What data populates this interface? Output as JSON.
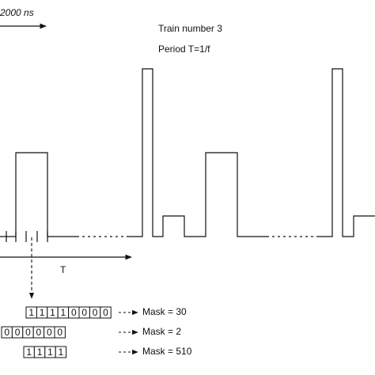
{
  "header": {
    "scale": "2000 ns",
    "train": "Train number 3",
    "period": "Period T=1/f"
  },
  "axis_label": "T",
  "masks": [
    {
      "bits": [
        "1",
        "1",
        "1",
        "1",
        "0",
        "0",
        "0",
        "0"
      ],
      "label": "Mask = 30"
    },
    {
      "bits": [
        "0",
        "0",
        "0",
        "0",
        "0",
        "0"
      ],
      "label": "Mask = 2"
    },
    {
      "bits": [
        "1",
        "1",
        "1",
        "1"
      ],
      "label": "Mask = 510"
    }
  ]
}
